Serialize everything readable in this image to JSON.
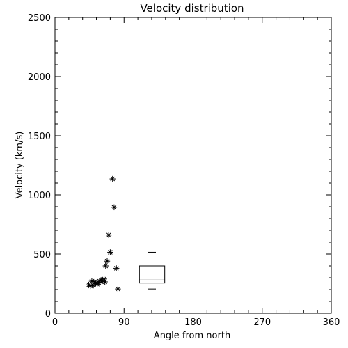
{
  "chart_data": {
    "type": "scatter",
    "title": "Velocity distribution",
    "xlabel": "Angle from north",
    "ylabel": "Velocity (km/s)",
    "xlim": [
      0,
      360
    ],
    "ylim": [
      0,
      2500
    ],
    "xticks": [
      0,
      90,
      180,
      270,
      360
    ],
    "yticks": [
      0,
      500,
      1000,
      1500,
      2000,
      2500
    ],
    "grid": false,
    "series": [
      {
        "marker": "asterisk",
        "points": [
          {
            "x": 44,
            "y": 240
          },
          {
            "x": 46,
            "y": 230
          },
          {
            "x": 48,
            "y": 270
          },
          {
            "x": 50,
            "y": 235
          },
          {
            "x": 52,
            "y": 265
          },
          {
            "x": 53,
            "y": 250
          },
          {
            "x": 55,
            "y": 245
          },
          {
            "x": 57,
            "y": 260
          },
          {
            "x": 58,
            "y": 270
          },
          {
            "x": 60,
            "y": 280
          },
          {
            "x": 62,
            "y": 275
          },
          {
            "x": 64,
            "y": 290
          },
          {
            "x": 65,
            "y": 265
          },
          {
            "x": 66,
            "y": 400
          },
          {
            "x": 68,
            "y": 440
          },
          {
            "x": 70,
            "y": 660
          },
          {
            "x": 72,
            "y": 515
          },
          {
            "x": 75,
            "y": 1135
          },
          {
            "x": 77,
            "y": 895
          },
          {
            "x": 80,
            "y": 380
          },
          {
            "x": 82,
            "y": 205
          }
        ]
      }
    ],
    "boxplot": {
      "x_left": 110,
      "x_right": 143,
      "whisker_low": 205,
      "q1": 255,
      "median": 280,
      "q3": 400,
      "whisker_high": 515
    }
  }
}
